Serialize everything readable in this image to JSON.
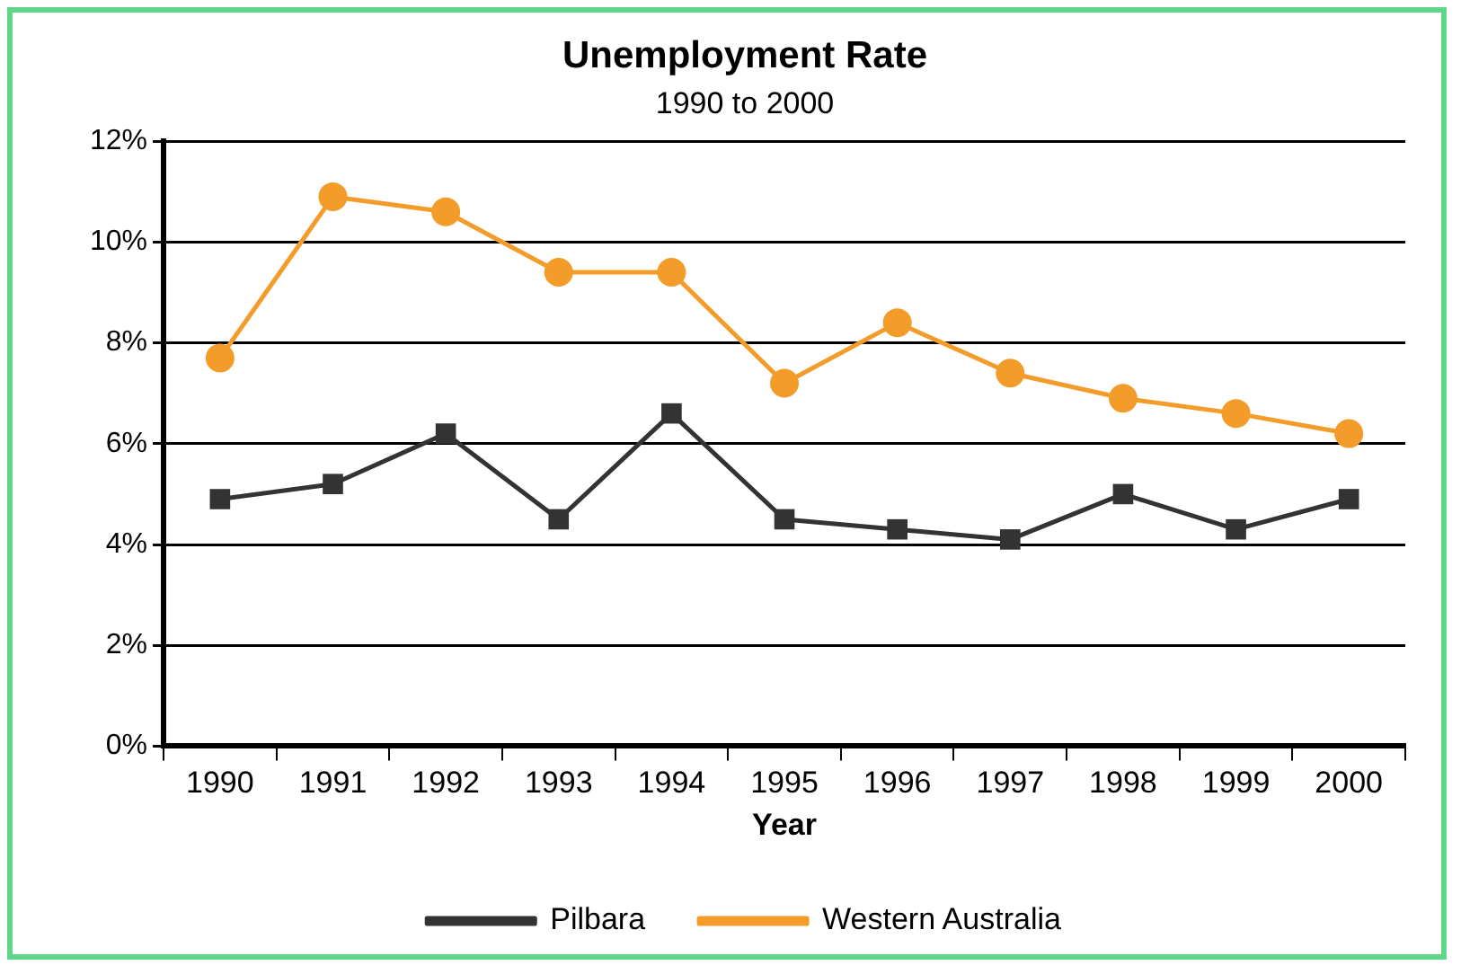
{
  "chart_data": {
    "type": "line",
    "title": "Unemployment Rate",
    "subtitle": "1990 to 2000",
    "xlabel": "Year",
    "categories": [
      "1990",
      "1991",
      "1992",
      "1993",
      "1994",
      "1995",
      "1996",
      "1997",
      "1998",
      "1999",
      "2000"
    ],
    "series": [
      {
        "name": "Pilbara",
        "color": "#333333",
        "marker": "square",
        "values": [
          4.9,
          5.2,
          6.2,
          4.5,
          6.6,
          4.5,
          4.3,
          4.1,
          5.0,
          4.3,
          4.9
        ]
      },
      {
        "name": "Western Australia",
        "color": "#f39c2a",
        "marker": "circle",
        "values": [
          7.7,
          10.9,
          10.6,
          9.4,
          9.4,
          7.2,
          8.4,
          7.4,
          6.9,
          6.6,
          6.2
        ]
      }
    ],
    "ylim": [
      0,
      12
    ],
    "yticks": [
      {
        "value": 0,
        "label": "0%"
      },
      {
        "value": 2,
        "label": "2%"
      },
      {
        "value": 4,
        "label": "4%"
      },
      {
        "value": 6,
        "label": "6%"
      },
      {
        "value": 8,
        "label": "8%"
      },
      {
        "value": 10,
        "label": "10%"
      },
      {
        "value": 12,
        "label": "12%"
      }
    ],
    "grid": "y",
    "legend": "bottom",
    "line_style": "solid"
  }
}
